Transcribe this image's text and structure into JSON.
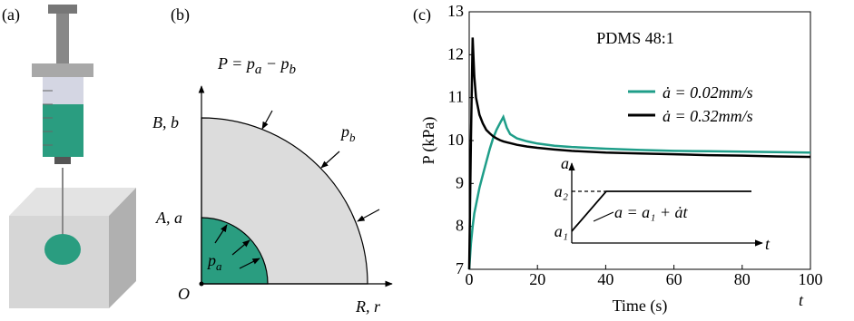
{
  "panel_a": {
    "label": "(a)"
  },
  "panel_b": {
    "label": "(b)",
    "equation": [
      {
        "text": "P = p"
      },
      {
        "sub": "a"
      },
      {
        "text": " − p"
      },
      {
        "sub": "b"
      }
    ],
    "outer_label": "B, b",
    "inner_label": "A, a",
    "origin_label": "O",
    "radial_label": "R, r",
    "outer_pressure": {
      "text": "p",
      "sub": "b"
    },
    "inner_pressure": {
      "text": "p",
      "sub": "a"
    }
  },
  "chart_data": {
    "type": "line",
    "panel_label": "(c)",
    "annotation": "PDMS 48:1",
    "xlabel": "Time (s)",
    "x_symbol": "t",
    "ylabel": "P (kPa)",
    "x": [
      0,
      0.5,
      1,
      1.5,
      2,
      3,
      4,
      5,
      6,
      7,
      8,
      9,
      10,
      11,
      12,
      14,
      17,
      20,
      25,
      30,
      40,
      50,
      60,
      70,
      80,
      90,
      100
    ],
    "series": [
      {
        "name": "ȧ = 0.02mm/s",
        "color": "#1f9e89",
        "values": [
          7.0,
          7.6,
          8.0,
          8.3,
          8.5,
          8.9,
          9.2,
          9.5,
          9.8,
          10.05,
          10.25,
          10.4,
          10.55,
          10.3,
          10.15,
          10.05,
          9.98,
          9.93,
          9.88,
          9.85,
          9.81,
          9.78,
          9.76,
          9.75,
          9.74,
          9.73,
          9.72
        ]
      },
      {
        "name": "ȧ = 0.32mm/s",
        "color": "#000000",
        "values": [
          7.0,
          10.0,
          12.4,
          11.5,
          11.0,
          10.6,
          10.4,
          10.25,
          10.17,
          10.1,
          10.05,
          10.01,
          9.98,
          9.96,
          9.94,
          9.9,
          9.86,
          9.83,
          9.79,
          9.76,
          9.72,
          9.7,
          9.68,
          9.66,
          9.65,
          9.63,
          9.62
        ]
      }
    ],
    "xlim": [
      0,
      100
    ],
    "ylim": [
      7,
      13
    ],
    "xticks": [
      0,
      20,
      40,
      60,
      80,
      100
    ],
    "yticks": [
      7,
      8,
      9,
      10,
      11,
      12,
      13
    ],
    "legend": "upper right",
    "inset": {
      "y_symbol": "a",
      "x_symbol": "t",
      "upper_tick": "a₂",
      "lower_tick": "a₁",
      "formula": "a = a₁ + ȧt"
    }
  }
}
